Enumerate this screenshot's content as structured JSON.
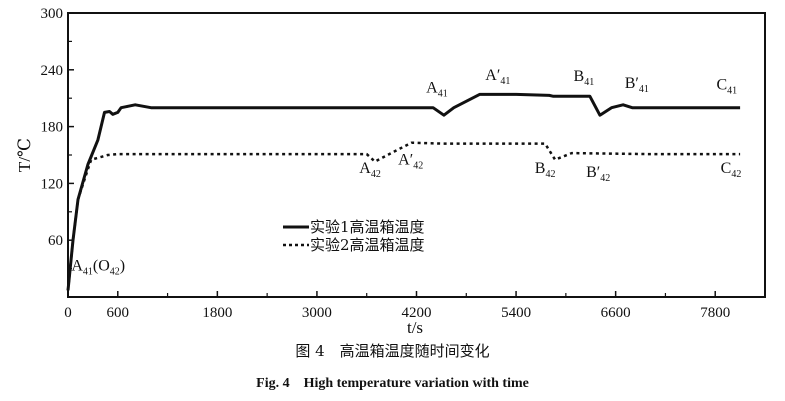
{
  "chart_data": {
    "type": "line",
    "title": "",
    "xlabel": "t/s",
    "ylabel": "T/℃",
    "xlim": [
      0,
      8400
    ],
    "ylim": [
      0,
      300
    ],
    "x_ticks": [
      0,
      600,
      1800,
      3000,
      4200,
      5400,
      6600,
      7800
    ],
    "x_minor_ticks": [
      1200,
      2400,
      3600,
      4800,
      6000,
      7200
    ],
    "y_ticks": [
      60,
      120,
      180,
      240,
      300
    ],
    "y_minor_ticks": [
      30,
      90,
      150,
      210,
      270
    ],
    "grid": false,
    "legend_position": "center-left",
    "series": [
      {
        "name": "实验1高温箱温度",
        "style": "solid",
        "x": [
          0,
          60,
          120,
          240,
          360,
          440,
          500,
          540,
          600,
          640,
          700,
          810,
          1000,
          2000,
          3000,
          4000,
          4400,
          4530,
          4650,
          4960,
          5400,
          5800,
          5850,
          6290,
          6410,
          6550,
          6690,
          6800,
          7500,
          8100
        ],
        "y": [
          7,
          60,
          103,
          140,
          166,
          195,
          196,
          193,
          195,
          200,
          201,
          203,
          200,
          200,
          200,
          200,
          200,
          192,
          200,
          214,
          214,
          213,
          212,
          212,
          192,
          200,
          203,
          200,
          200,
          200
        ]
      },
      {
        "name": "实验2高温箱温度",
        "style": "dotted",
        "x": [
          0,
          60,
          120,
          240,
          280,
          400,
          480,
          600,
          1500,
          3000,
          3600,
          3700,
          3850,
          4140,
          4500,
          5400,
          5750,
          5870,
          6070,
          7000,
          8100
        ],
        "y": [
          7,
          60,
          103,
          135,
          145,
          148,
          150,
          151,
          151,
          151,
          151,
          143,
          150,
          163,
          162,
          162,
          162,
          145,
          152,
          151,
          151
        ]
      }
    ],
    "annotations": [
      {
        "base": "A",
        "prime": "",
        "sub": "41",
        "suffix": "(O",
        "suffix_sub": "42",
        "end": ")",
        "x": 40,
        "y": 28,
        "anchor": "start"
      },
      {
        "base": "A",
        "prime": "",
        "sub": "41",
        "x": 4446,
        "y": 216,
        "anchor": "middle"
      },
      {
        "base": "A",
        "prime": "′",
        "sub": "41",
        "x": 5180,
        "y": 229,
        "anchor": "middle"
      },
      {
        "base": "B",
        "prime": "",
        "sub": "41",
        "x": 6217,
        "y": 228,
        "anchor": "middle"
      },
      {
        "base": "B",
        "prime": "′",
        "sub": "41",
        "x": 6855,
        "y": 221,
        "anchor": "middle"
      },
      {
        "base": "C",
        "prime": "",
        "sub": "41",
        "x": 7940,
        "y": 219,
        "anchor": "middle"
      },
      {
        "base": "A",
        "prime": "",
        "sub": "42",
        "x": 3640,
        "y": 131,
        "anchor": "middle"
      },
      {
        "base": "A",
        "prime": "′",
        "sub": "42",
        "x": 4130,
        "y": 140,
        "anchor": "middle"
      },
      {
        "base": "B",
        "prime": "",
        "sub": "42",
        "x": 5750,
        "y": 131,
        "anchor": "middle"
      },
      {
        "base": "B",
        "prime": "′",
        "sub": "42",
        "x": 6390,
        "y": 127,
        "anchor": "middle"
      },
      {
        "base": "C",
        "prime": "",
        "sub": "42",
        "x": 7990,
        "y": 131,
        "anchor": "middle"
      }
    ]
  },
  "caption": {
    "cn": "图 4　高温箱温度随时间变化",
    "en": "Fig. 4　High temperature variation with time"
  },
  "colors": {
    "line": "#111111",
    "axis": "#111111"
  }
}
